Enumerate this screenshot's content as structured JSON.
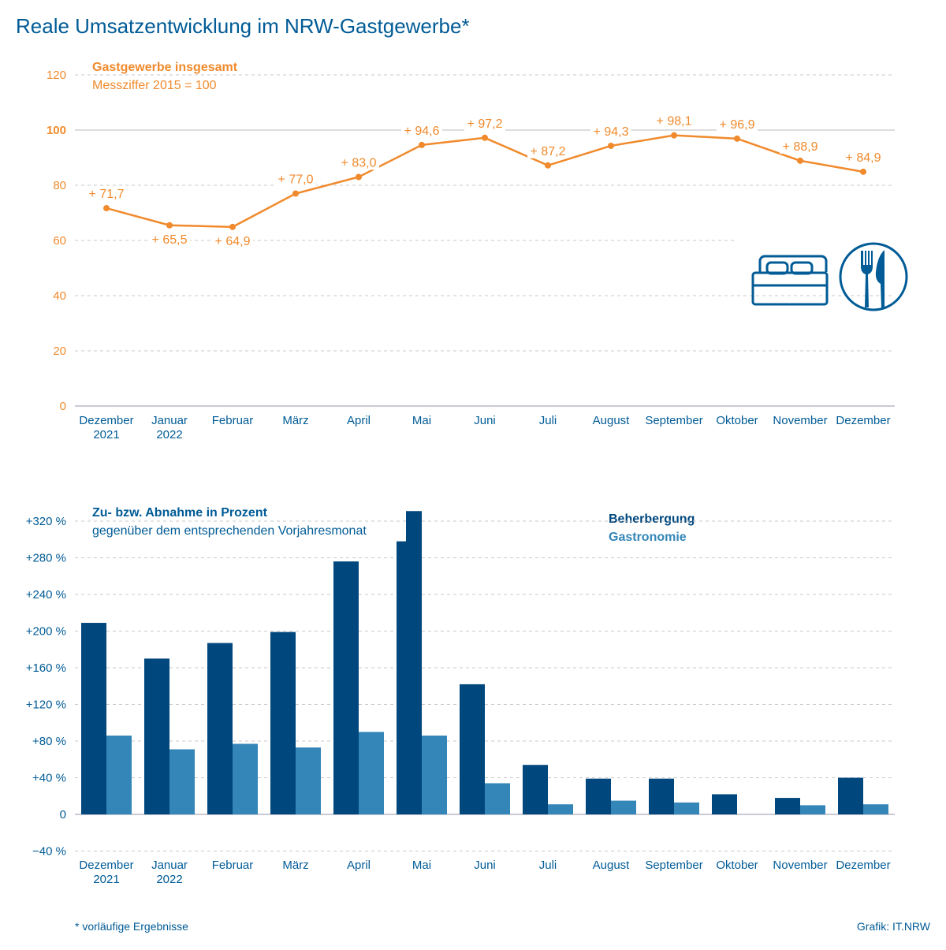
{
  "title": "Reale Umsatzentwicklung im NRW-Gastgewerbe*",
  "footnote": "*  vorläufige Ergebnisse",
  "credit": "Grafik: IT.NRW",
  "colors": {
    "title": "#005b96",
    "orange": "#f08a2c",
    "beherbergung": "#00477e",
    "gastronomie": "#3486b8",
    "grid": "#c8c8c8"
  },
  "icons": [
    "bed-icon",
    "fork-knife-icon"
  ],
  "chart_data": [
    {
      "type": "line",
      "title": "Gastgewerbe insgesamt",
      "subtitle": "Messziffer 2015 = 100",
      "categories": [
        "Dezember|2021",
        "Januar|2022",
        "Februar",
        "März",
        "April",
        "Mai",
        "Juni",
        "Juli",
        "August",
        "September",
        "Oktober",
        "November",
        "Dezember"
      ],
      "values": [
        71.7,
        65.5,
        64.9,
        77.0,
        83.0,
        94.6,
        97.2,
        87.2,
        94.3,
        98.1,
        96.9,
        88.9,
        84.9
      ],
      "data_labels": [
        "+ 71,7",
        "+ 65,5",
        "+ 64,9",
        "+ 77,0",
        "+ 83,0",
        "+ 94,6",
        "+ 97,2",
        "+ 87,2",
        "+ 94,3",
        "+ 98,1",
        "+ 96,9",
        "+ 88,9",
        "+ 84,9"
      ],
      "yticks": [
        "0",
        "20",
        "40",
        "60",
        "80",
        "100",
        "120"
      ],
      "ytick_values": [
        0,
        20,
        40,
        60,
        80,
        100,
        120
      ],
      "ylim": [
        0,
        120
      ],
      "grid": true
    },
    {
      "type": "bar",
      "title": "Zu- bzw. Abnahme in Prozent",
      "subtitle": "gegenüber dem entsprechenden Vorjahresmonat",
      "categories": [
        "Dezember|2021",
        "Januar|2022",
        "Februar",
        "März",
        "April",
        "Mai",
        "Juni",
        "Juli",
        "August",
        "September",
        "Oktober",
        "November",
        "Dezember"
      ],
      "series": [
        {
          "name": "Beherbergung",
          "values": [
            209,
            170,
            187,
            199,
            276,
            331,
            142,
            54,
            39,
            39,
            22,
            18,
            40
          ]
        },
        {
          "name": "Gastronomie",
          "values": [
            86,
            71,
            77,
            73,
            90,
            86,
            34,
            11,
            15,
            13,
            0,
            10,
            11
          ]
        }
      ],
      "yticks": [
        "−40 %",
        "0",
        "+40 %",
        "+80 %",
        "+120 %",
        "+160 %",
        "+200 %",
        "+240 %",
        "+280 %",
        "+320 %"
      ],
      "ytick_values": [
        -40,
        0,
        40,
        80,
        120,
        160,
        200,
        240,
        280,
        320
      ],
      "ylim": [
        -40,
        330
      ],
      "axis_break": "Mai Beherbergung",
      "legend": "top-right",
      "grid": true
    }
  ]
}
